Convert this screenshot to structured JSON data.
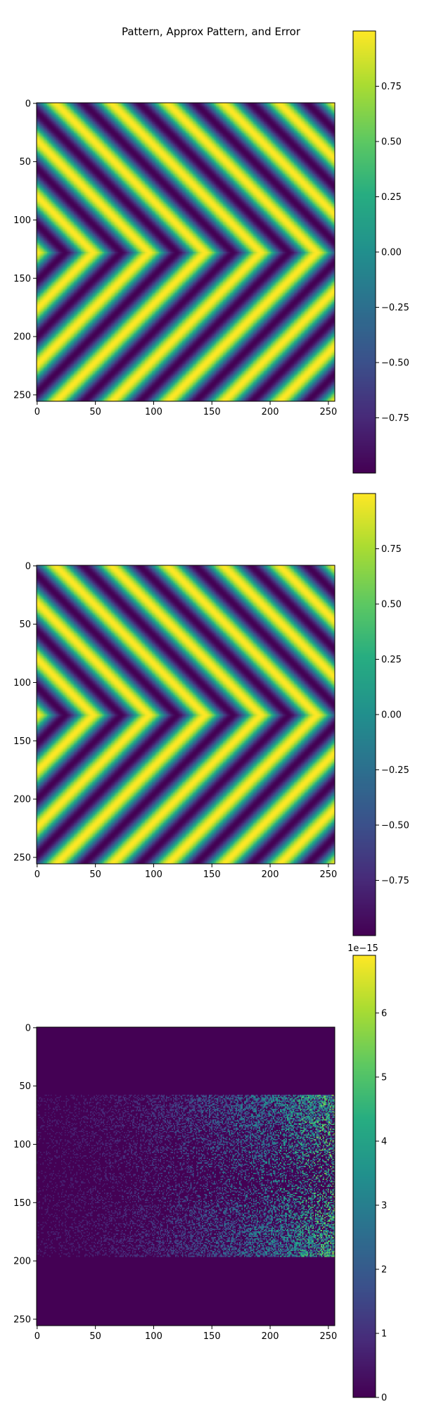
{
  "figure": {
    "title": "Pattern, Approx Pattern, and Error"
  },
  "chart_data": [
    {
      "type": "heatmap",
      "name": "Pattern",
      "title": "",
      "grid_size": 256,
      "xlim": [
        0,
        255
      ],
      "ylim": [
        255,
        0
      ],
      "x_ticks": [
        "0",
        "50",
        "100",
        "150",
        "200",
        "250"
      ],
      "y_ticks": [
        "0",
        "50",
        "100",
        "150",
        "200",
        "250"
      ],
      "value_range": [
        -1.0,
        1.0
      ],
      "pattern": "chevron stripes pointing left, apex at row ~128, stripe period ~48 px",
      "colormap": "viridis",
      "colorbar_ticks": [
        "0.75",
        "0.50",
        "0.25",
        "0.00",
        "−0.25",
        "−0.50",
        "−0.75"
      ]
    },
    {
      "type": "heatmap",
      "name": "Approx Pattern",
      "title": "",
      "grid_size": 256,
      "xlim": [
        0,
        255
      ],
      "ylim": [
        255,
        0
      ],
      "x_ticks": [
        "0",
        "50",
        "100",
        "150",
        "200",
        "250"
      ],
      "y_ticks": [
        "0",
        "50",
        "100",
        "150",
        "200",
        "250"
      ],
      "value_range": [
        -1.0,
        1.0
      ],
      "pattern": "same as Pattern (chevron stripes)",
      "colormap": "viridis",
      "colorbar_ticks": [
        "0.75",
        "0.50",
        "0.25",
        "0.00",
        "−0.25",
        "−0.50",
        "−0.75"
      ]
    },
    {
      "type": "heatmap",
      "name": "Error",
      "title": "",
      "grid_size": 256,
      "xlim": [
        0,
        255
      ],
      "ylim": [
        255,
        0
      ],
      "x_ticks": [
        "0",
        "50",
        "100",
        "150",
        "200",
        "250"
      ],
      "y_ticks": [
        "0",
        "50",
        "100",
        "150",
        "200",
        "250"
      ],
      "value_range": [
        0,
        6.9e-15
      ],
      "nonzero_rows": [
        58,
        196
      ],
      "pattern": "noisy error mostly near 0, larger (up to ~6e-15) toward right side between rows 58 and 196",
      "colormap": "viridis",
      "colorbar_ticks": [
        "6",
        "5",
        "4",
        "3",
        "2",
        "1",
        "0"
      ],
      "colorbar_offset": "1e−15"
    }
  ]
}
